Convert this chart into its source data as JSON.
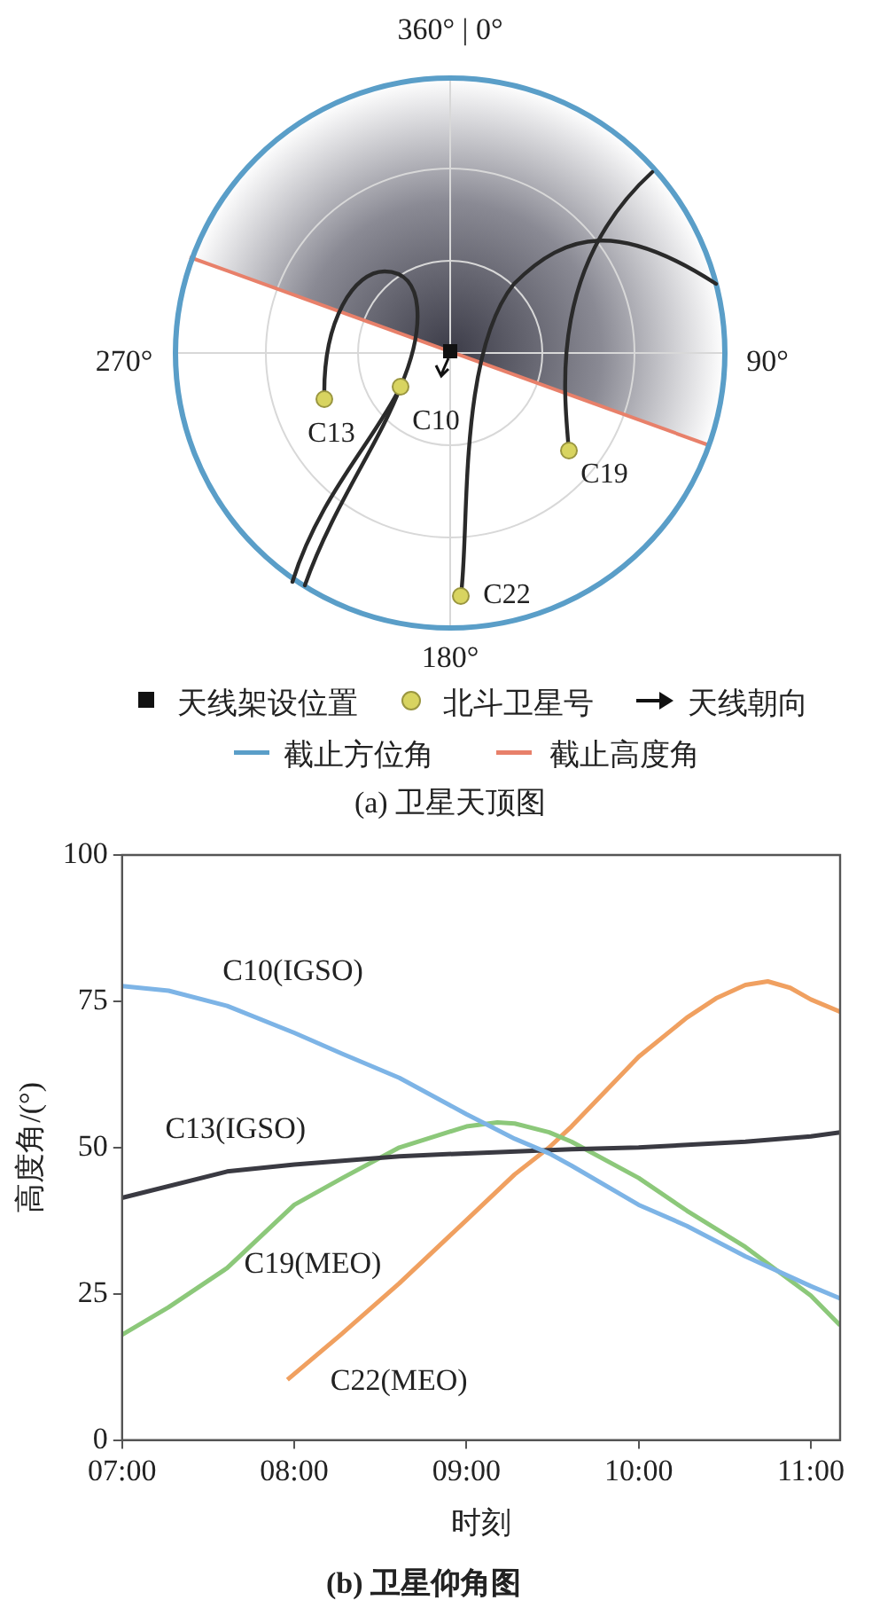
{
  "chart_data": [
    {
      "type": "other",
      "title": "(a) 卫星天顶图",
      "annotations": [
        "360° | 0°",
        "270°",
        "90°",
        "180°",
        "C13",
        "C10",
        "C19",
        "C22",
        "天线架设位置",
        "北斗卫星号",
        "天线朝向",
        "截止方位角",
        "截止高度角"
      ]
    },
    {
      "type": "line",
      "title": "(b) 卫星仰角图",
      "xlabel": "时刻",
      "ylabel": "高度角/(°)",
      "xlim": [
        7,
        11.17
      ],
      "xticks": [
        {
          "value": 7,
          "label": "07:00"
        },
        {
          "value": 8,
          "label": "08:00"
        },
        {
          "value": 9,
          "label": "09:00"
        },
        {
          "value": 10,
          "label": "10:00"
        },
        {
          "value": 11,
          "label": "11:00"
        }
      ],
      "ylim": [
        0,
        100
      ],
      "yticks": [
        0,
        25,
        50,
        75,
        100
      ],
      "legend": false,
      "marker": "none",
      "line_style": "solid",
      "series": [
        {
          "name": "C10(IGSO)",
          "color": "#7db4e6",
          "x": [
            7,
            7.27,
            7.61,
            8,
            8.28,
            8.61,
            9,
            9.28,
            9.48,
            9.61,
            10,
            10.28,
            10.62,
            11,
            11.17
          ],
          "values": [
            77.6,
            76.8,
            74.2,
            69.6,
            66,
            61.9,
            55.7,
            51.5,
            49,
            46.9,
            40.2,
            36.6,
            31.4,
            26.3,
            24.2
          ]
        },
        {
          "name": "C13(IGSO)",
          "color": "#3a3a42",
          "x": [
            7,
            7.61,
            8,
            8.61,
            9,
            9.61,
            10,
            10.62,
            11,
            11.17
          ],
          "values": [
            41.4,
            45.9,
            47.1,
            48.5,
            49,
            49.7,
            50,
            51,
            51.9,
            52.6
          ]
        },
        {
          "name": "C19(MEO)",
          "color": "#8cc87a",
          "x": [
            7,
            7.27,
            7.61,
            8,
            8.28,
            8.61,
            9,
            9.18,
            9.28,
            9.48,
            9.61,
            10,
            10.28,
            10.62,
            11,
            11.17
          ],
          "values": [
            18,
            22.7,
            29.4,
            40.2,
            44.8,
            50,
            53.6,
            54.3,
            54.1,
            52.6,
            51,
            44.8,
            39.2,
            33,
            24.7,
            19.6
          ]
        },
        {
          "name": "C22(MEO)",
          "color": "#f0a060",
          "x": [
            7.96,
            8.27,
            8.61,
            9,
            9.28,
            9.48,
            9.61,
            10,
            10.28,
            10.45,
            10.62,
            10.75,
            10.88,
            11,
            11.17
          ],
          "values": [
            10.3,
            18,
            26.8,
            37.6,
            45.4,
            50,
            53.6,
            65.5,
            72.2,
            75.5,
            77.8,
            78.4,
            77.3,
            75.3,
            73.2
          ]
        }
      ]
    }
  ]
}
